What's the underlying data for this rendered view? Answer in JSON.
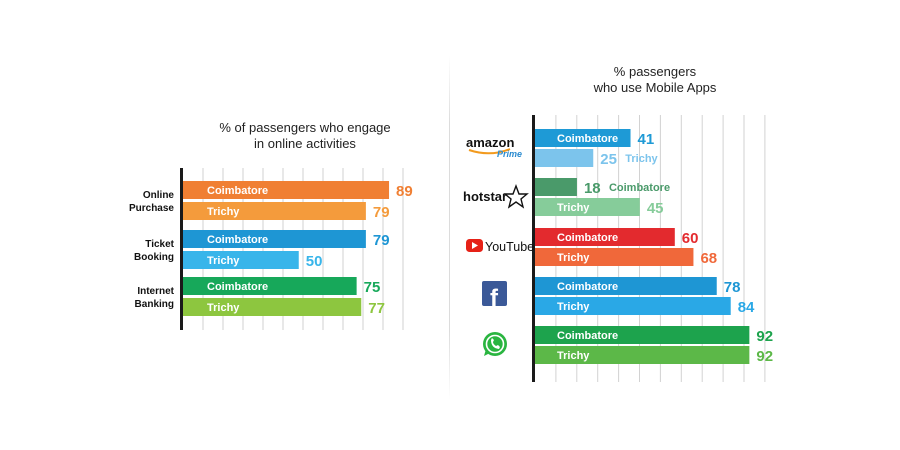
{
  "chart_data": [
    {
      "type": "bar",
      "orientation": "horizontal",
      "title": "% of passengers who engage in online activities",
      "title_lines": [
        "% of passengers who engage",
        "in online activities"
      ],
      "categories": [
        "Online Purchase",
        "Ticket Booking",
        "Internet Banking"
      ],
      "category_lines": [
        [
          "Online",
          "Purchase"
        ],
        [
          "Ticket",
          "Booking"
        ],
        [
          "Internet",
          "Banking"
        ]
      ],
      "xlim": [
        0,
        100
      ],
      "grid": true,
      "legend": "none",
      "series": [
        {
          "name": "Coimbatore",
          "values": [
            89,
            79,
            75
          ]
        },
        {
          "name": "Trichy",
          "values": [
            79,
            50,
            77
          ]
        }
      ],
      "bar_colors": [
        [
          "#f07f33",
          "#f49b3c"
        ],
        [
          "#1e96d4",
          "#38b5ea"
        ],
        [
          "#17a85a",
          "#8dc63f"
        ]
      ],
      "value_colors": [
        [
          "#f07f33",
          "#f49b3c"
        ],
        [
          "#1e96d4",
          "#38b5ea"
        ],
        [
          "#17a85a",
          "#8dc63f"
        ]
      ]
    },
    {
      "type": "bar",
      "orientation": "horizontal",
      "title": "% passengers who use Mobile Apps",
      "title_lines": [
        "% passengers",
        "who use Mobile Apps"
      ],
      "categories": [
        "Amazon Prime",
        "Hotstar",
        "YouTube",
        "Facebook",
        "WhatsApp"
      ],
      "category_icons": [
        "amazon-prime-logo",
        "hotstar-logo",
        "youtube-logo",
        "facebook-logo",
        "whatsapp-logo"
      ],
      "xlim": [
        0,
        100
      ],
      "grid": true,
      "legend": "none",
      "series": [
        {
          "name": "Coimbatore",
          "values": [
            41,
            18,
            60,
            78,
            92
          ]
        },
        {
          "name": "Trichy",
          "values": [
            25,
            45,
            68,
            84,
            92
          ]
        }
      ],
      "bar_colors": [
        [
          "#1e9ad6",
          "#7cc4ec"
        ],
        [
          "#4a9a6a",
          "#86cc9a"
        ],
        [
          "#e32a2e",
          "#f0683a"
        ],
        [
          "#1e96d4",
          "#2aa8e6"
        ],
        [
          "#1da34d",
          "#5cb848"
        ]
      ],
      "value_colors": [
        [
          "#1e9ad6",
          "#7cc4ec"
        ],
        [
          "#4a9a6a",
          "#86cc9a"
        ],
        [
          "#e32a2e",
          "#f0683a"
        ],
        [
          "#1e96d4",
          "#2aa8e6"
        ],
        [
          "#1da34d",
          "#5cb848"
        ]
      ]
    }
  ],
  "logos": {
    "amazon": "amazon",
    "prime": "Prime",
    "hotstar": "hotstar",
    "youtube": "YouTube",
    "facebook": "f"
  }
}
